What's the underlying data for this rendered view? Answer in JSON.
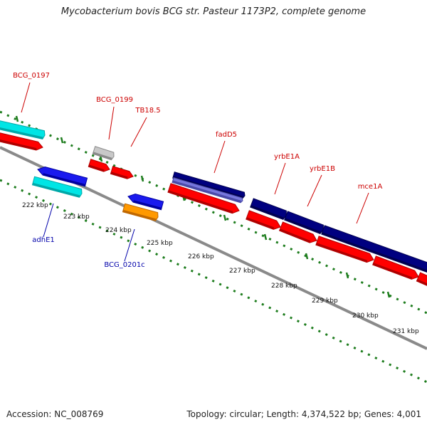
{
  "title": "Mycobacterium bovis BCG str. Pasteur 1173P2, complete genome",
  "footer": {
    "accession": "Accession: NC_008769",
    "summary": "Topology: circular; Length: 4,374,522 bp; Genes: 4,001"
  },
  "colors": {
    "backbone": "#8a8a8a",
    "tick": "#1e7d1e",
    "label_forward": "#cc0000",
    "label_reverse": "#0000aa"
  },
  "scale_labels": [
    "222 kbp",
    "223 kbp",
    "224 kbp",
    "225 kbp",
    "226 kbp",
    "227 kbp",
    "228 kbp",
    "229 kbp",
    "230 kbp",
    "231 kbp"
  ],
  "gene_labels": [
    {
      "text": "BCG_0197",
      "strand": "forward"
    },
    {
      "text": "BCG_0199",
      "strand": "forward"
    },
    {
      "text": "TB18.5",
      "strand": "forward"
    },
    {
      "text": "fadD5",
      "strand": "forward"
    },
    {
      "text": "yrbE1A",
      "strand": "forward"
    },
    {
      "text": "yrbE1B",
      "strand": "forward"
    },
    {
      "text": "mce1A",
      "strand": "forward"
    },
    {
      "text": "adhE1",
      "strand": "reverse"
    },
    {
      "text": "BCG_0201c",
      "strand": "reverse"
    }
  ],
  "features": [
    {
      "name": "BCG_0197-feature",
      "color": "#00e5e5",
      "shade": "#00a8a8"
    },
    {
      "name": "BCG_0197-cds",
      "color": "#ff0000",
      "shade": "#b00000"
    },
    {
      "name": "BCG_0199-feature",
      "color": "#c8c8c8",
      "shade": "#8a8a8a"
    },
    {
      "name": "BCG_0199-cds",
      "color": "#ff0000",
      "shade": "#b00000"
    },
    {
      "name": "TB18.5-cds",
      "color": "#ff0000",
      "shade": "#b00000"
    },
    {
      "name": "adhE1-gene",
      "color": "#1a1aee",
      "shade": "#0000a0"
    },
    {
      "name": "adhE1-feature",
      "color": "#00e5e5",
      "shade": "#00a8a8"
    },
    {
      "name": "BCG_0201c-gene",
      "color": "#1a1aee",
      "shade": "#0000a0"
    },
    {
      "name": "BCG_0201c-feature",
      "color": "#ff9900",
      "shade": "#c06800"
    },
    {
      "name": "fadD5-gene",
      "color": "#000080",
      "shade": "#000050"
    },
    {
      "name": "fadD5-feature",
      "color": "#7777dd",
      "shade": "#4a4aa8"
    },
    {
      "name": "fadD5-cds",
      "color": "#ff0000",
      "shade": "#b00000"
    },
    {
      "name": "yrbE1A-gene",
      "color": "#000080",
      "shade": "#000050"
    },
    {
      "name": "yrbE1A-cds",
      "color": "#ff0000",
      "shade": "#b00000"
    },
    {
      "name": "yrbE1B-gene",
      "color": "#000080",
      "shade": "#000050"
    },
    {
      "name": "yrbE1B-cds",
      "color": "#ff0000",
      "shade": "#b00000"
    },
    {
      "name": "mce1A-gene",
      "color": "#000080",
      "shade": "#000050"
    },
    {
      "name": "mce1A-cds",
      "color": "#ff0000",
      "shade": "#b00000"
    },
    {
      "name": "mce1A-next-cds",
      "color": "#ff0000",
      "shade": "#b00000"
    }
  ]
}
